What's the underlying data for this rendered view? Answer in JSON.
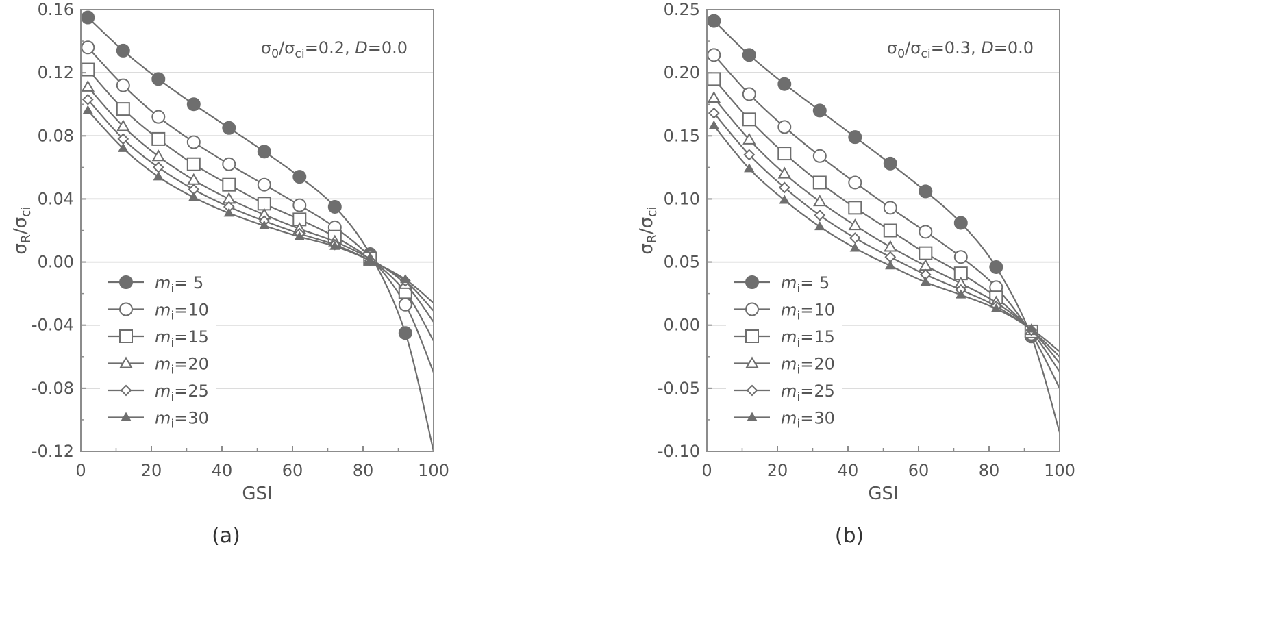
{
  "chart_data": [
    {
      "type": "line",
      "panel": "a",
      "caption": "(a)",
      "xlabel": "GSI",
      "ylabel": "σR/σci",
      "annotation": "σ0/σci=0.2, D=0.0",
      "xlim": [
        0,
        100
      ],
      "ylim": [
        -0.12,
        0.16
      ],
      "xticks": [
        "0",
        "20",
        "40",
        "60",
        "80",
        "100"
      ],
      "yticks": [
        "-0.12",
        "-0.08",
        "-0.04",
        "0.00",
        "0.04",
        "0.08",
        "0.12",
        "0.16"
      ],
      "grid": "horizontal",
      "legend_position": "lower-left",
      "marker_x": [
        2,
        12,
        22,
        32,
        42,
        52,
        62,
        72,
        82,
        92
      ],
      "series": [
        {
          "name": "mi= 5",
          "marker": "filled-circle",
          "values": [
            0.155,
            0.134,
            0.116,
            0.1,
            0.085,
            0.07,
            0.054,
            0.035,
            0.005,
            -0.045
          ],
          "end_value": -0.12
        },
        {
          "name": "mi=10",
          "marker": "open-circle",
          "values": [
            0.136,
            0.112,
            0.092,
            0.076,
            0.062,
            0.049,
            0.036,
            0.022,
            0.003,
            -0.027
          ],
          "end_value": -0.07
        },
        {
          "name": "mi=15",
          "marker": "open-square",
          "values": [
            0.122,
            0.097,
            0.078,
            0.062,
            0.049,
            0.037,
            0.027,
            0.016,
            0.002,
            -0.019
          ],
          "end_value": -0.05
        },
        {
          "name": "mi=20",
          "marker": "open-triangle",
          "values": [
            0.111,
            0.086,
            0.067,
            0.052,
            0.04,
            0.03,
            0.021,
            0.013,
            0.002,
            -0.014
          ],
          "end_value": -0.038
        },
        {
          "name": "mi=25",
          "marker": "open-diamond",
          "values": [
            0.103,
            0.078,
            0.06,
            0.046,
            0.035,
            0.026,
            0.018,
            0.011,
            0.001,
            -0.012
          ],
          "end_value": -0.031
        },
        {
          "name": "mi=30",
          "marker": "filled-triangle",
          "values": [
            0.096,
            0.072,
            0.054,
            0.041,
            0.031,
            0.023,
            0.016,
            0.01,
            0.001,
            -0.011
          ],
          "end_value": -0.026
        }
      ]
    },
    {
      "type": "line",
      "panel": "b",
      "caption": "(b)",
      "xlabel": "GSI",
      "ylabel": "σR/σci",
      "annotation": "σ0/σci=0.3, D=0.0",
      "xlim": [
        0,
        100
      ],
      "ylim": [
        -0.1,
        0.25
      ],
      "xticks": [
        "0",
        "20",
        "40",
        "60",
        "80",
        "100"
      ],
      "yticks": [
        "-0.10",
        "-0.05",
        "0.00",
        "0.05",
        "0.10",
        "0.15",
        "0.20",
        "0.25"
      ],
      "grid": "horizontal",
      "legend_position": "lower-left",
      "marker_x": [
        2,
        12,
        22,
        32,
        42,
        52,
        62,
        72,
        82,
        92
      ],
      "series": [
        {
          "name": "mi= 5",
          "marker": "filled-circle",
          "values": [
            0.241,
            0.214,
            0.191,
            0.17,
            0.149,
            0.128,
            0.106,
            0.081,
            0.046,
            -0.009
          ],
          "end_value": -0.085
        },
        {
          "name": "mi=10",
          "marker": "open-circle",
          "values": [
            0.214,
            0.183,
            0.157,
            0.134,
            0.113,
            0.093,
            0.074,
            0.054,
            0.03,
            -0.007
          ],
          "end_value": -0.05
        },
        {
          "name": "mi=15",
          "marker": "open-square",
          "values": [
            0.195,
            0.163,
            0.136,
            0.113,
            0.093,
            0.075,
            0.057,
            0.041,
            0.022,
            -0.005
          ],
          "end_value": -0.037
        },
        {
          "name": "mi=20",
          "marker": "open-triangle",
          "values": [
            0.18,
            0.147,
            0.12,
            0.098,
            0.079,
            0.062,
            0.047,
            0.033,
            0.018,
            -0.004
          ],
          "end_value": -0.03
        },
        {
          "name": "mi=25",
          "marker": "open-diamond",
          "values": [
            0.168,
            0.135,
            0.109,
            0.087,
            0.069,
            0.054,
            0.04,
            0.028,
            0.015,
            -0.004
          ],
          "end_value": -0.025
        },
        {
          "name": "mi=30",
          "marker": "filled-triangle",
          "values": [
            0.158,
            0.124,
            0.099,
            0.078,
            0.061,
            0.047,
            0.034,
            0.024,
            0.013,
            -0.003
          ],
          "end_value": -0.021
        }
      ]
    }
  ],
  "legend_label_prefix": "m",
  "legend_label_subscript": "i",
  "colors": {
    "line": "#6e6e6e",
    "axis": "#8c8c8c",
    "grid": "#c8c8c8",
    "text": "#555555"
  }
}
